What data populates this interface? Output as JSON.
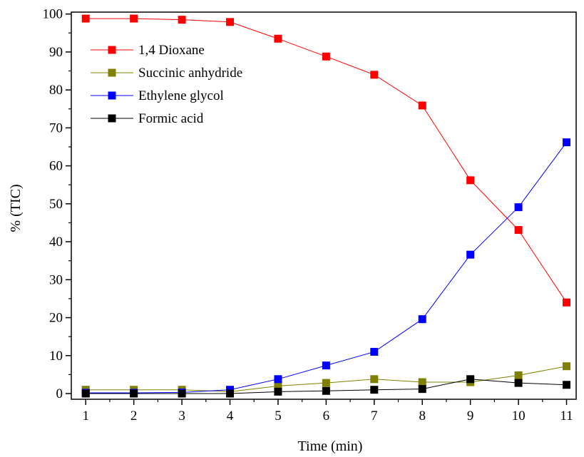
{
  "chart_data": {
    "type": "line",
    "xlabel": "Time (min)",
    "ylabel": "% (TIC)",
    "xlim": [
      0.7,
      11.2
    ],
    "ylim": [
      -1.5,
      100.5
    ],
    "x_ticks": [
      1,
      2,
      3,
      4,
      5,
      6,
      7,
      8,
      9,
      10,
      11
    ],
    "y_ticks": [
      0,
      10,
      20,
      30,
      40,
      50,
      60,
      70,
      80,
      90,
      100
    ],
    "x": [
      1,
      2,
      3,
      4,
      5,
      6,
      7,
      8,
      9,
      10,
      11
    ],
    "legend_position": "upper-left",
    "grid": false,
    "series": [
      {
        "name": "1,4 Dioxane",
        "color": "#ff0000",
        "line_color": "#ff0000",
        "values": [
          98.8,
          98.8,
          98.5,
          97.9,
          93.5,
          88.8,
          84.0,
          75.9,
          56.2,
          43.1,
          24.0
        ]
      },
      {
        "name": "Succinic anhydride",
        "color": "#808000",
        "line_color": "#808000",
        "values": [
          1.0,
          1.0,
          1.0,
          0.5,
          2.0,
          2.8,
          3.8,
          3.0,
          3.0,
          4.8,
          7.2
        ]
      },
      {
        "name": "Ethylene glycol",
        "color": "#0000ff",
        "line_color": "#0000ff",
        "values": [
          0.2,
          0.2,
          0.3,
          1.0,
          3.8,
          7.4,
          11.0,
          19.6,
          36.6,
          49.1,
          66.2
        ]
      },
      {
        "name": "Formic acid",
        "color": "#000000",
        "line_color": "#000000",
        "values": [
          0.0,
          0.0,
          0.0,
          0.0,
          0.5,
          0.7,
          1.0,
          1.2,
          3.8,
          2.8,
          2.3
        ]
      }
    ]
  }
}
